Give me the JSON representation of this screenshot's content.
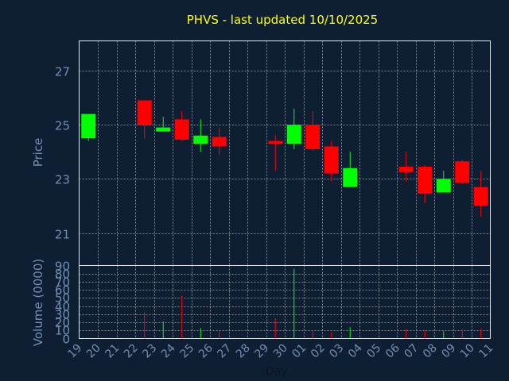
{
  "chart_data": {
    "type": "candlestick",
    "title": "PHVS - last updated 10/10/2025",
    "xlabel": "Day",
    "price_panel": {
      "ylabel": "Price",
      "ylim": [
        19.8,
        28.1
      ],
      "yticks": [
        21,
        23,
        25,
        27
      ]
    },
    "volume_panel": {
      "ylabel": "Volume (0000)",
      "ylim": [
        0,
        90
      ],
      "yticks": [
        0,
        10,
        20,
        30,
        40,
        50,
        60,
        70,
        80,
        90
      ]
    },
    "x_tick_labels": [
      "19",
      "20",
      "21",
      "22",
      "23",
      "24",
      "25",
      "26",
      "27",
      "28",
      "29",
      "30",
      "01",
      "02",
      "03",
      "04",
      "05",
      "06",
      "07",
      "08",
      "09",
      "10",
      "11"
    ],
    "candles": [
      {
        "x": 0,
        "open": 24.5,
        "high": 25.4,
        "low": 24.4,
        "close": 25.4,
        "volume": 0
      },
      {
        "x": 3,
        "open": 25.9,
        "high": 25.9,
        "low": 24.5,
        "close": 25.0,
        "volume": 32
      },
      {
        "x": 4,
        "open": 24.75,
        "high": 25.3,
        "low": 24.75,
        "close": 24.9,
        "volume": 21
      },
      {
        "x": 5,
        "open": 25.2,
        "high": 25.5,
        "low": 24.4,
        "close": 24.45,
        "volume": 53
      },
      {
        "x": 6,
        "open": 24.3,
        "high": 25.2,
        "low": 24.0,
        "close": 24.6,
        "volume": 13
      },
      {
        "x": 7,
        "open": 24.55,
        "high": 24.9,
        "low": 23.9,
        "close": 24.2,
        "volume": 9
      },
      {
        "x": 10,
        "open": 24.4,
        "high": 24.6,
        "low": 23.3,
        "close": 24.3,
        "volume": 25
      },
      {
        "x": 11,
        "open": 24.3,
        "high": 25.6,
        "low": 24.1,
        "close": 25.0,
        "volume": 86
      },
      {
        "x": 12,
        "open": 25.0,
        "high": 25.5,
        "low": 24.05,
        "close": 24.1,
        "volume": 10
      },
      {
        "x": 13,
        "open": 24.2,
        "high": 24.4,
        "low": 22.9,
        "close": 23.2,
        "volume": 8
      },
      {
        "x": 14,
        "open": 22.7,
        "high": 24.0,
        "low": 22.7,
        "close": 23.4,
        "volume": 14
      },
      {
        "x": 17,
        "open": 23.45,
        "high": 24.0,
        "low": 22.9,
        "close": 23.25,
        "volume": 12
      },
      {
        "x": 18,
        "open": 23.45,
        "high": 23.5,
        "low": 22.1,
        "close": 22.45,
        "volume": 10
      },
      {
        "x": 19,
        "open": 22.5,
        "high": 23.3,
        "low": 22.5,
        "close": 23.0,
        "volume": 9
      },
      {
        "x": 20,
        "open": 23.65,
        "high": 23.7,
        "low": 22.8,
        "close": 22.85,
        "volume": 12
      },
      {
        "x": 21,
        "open": 22.7,
        "high": 23.3,
        "low": 21.6,
        "close": 22.0,
        "volume": 12
      }
    ],
    "grid": true,
    "up_color": "#00ff00",
    "down_color": "#ff0000",
    "title_color": "#ffff00",
    "label_color": "#6f8fb5",
    "background_color": "#0f1f33",
    "grid_color": "#c8c8c8"
  }
}
